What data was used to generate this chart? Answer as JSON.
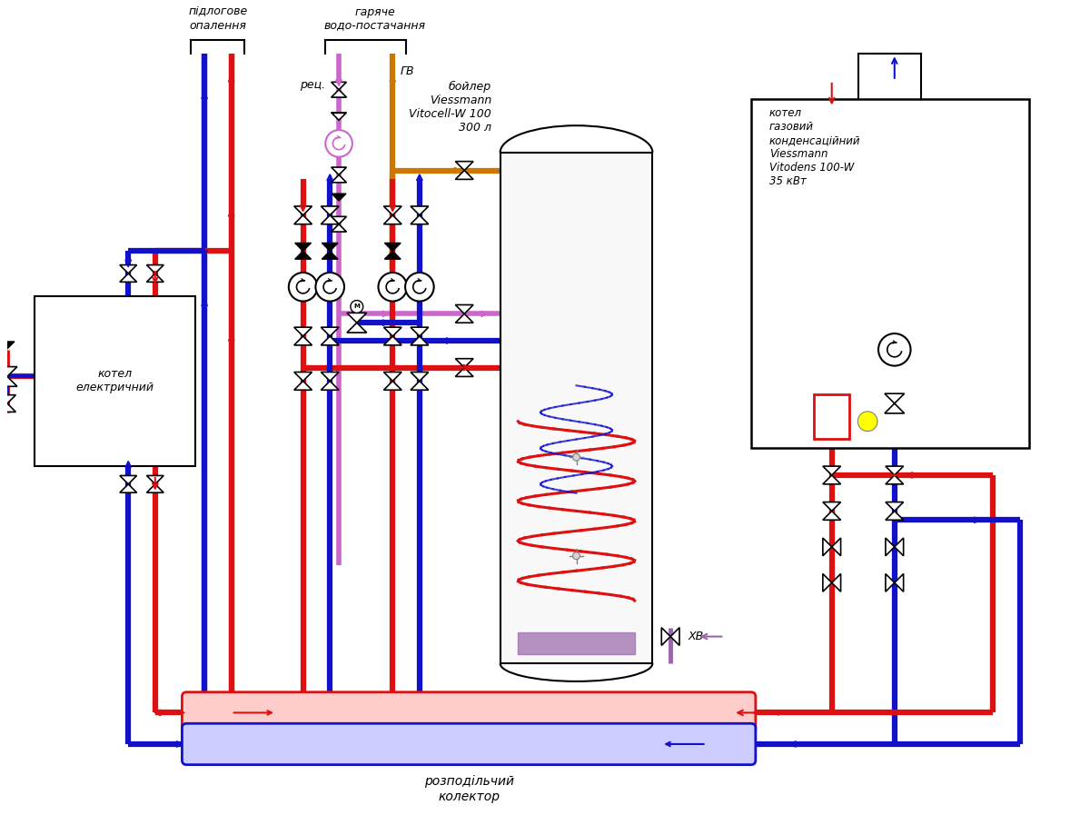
{
  "bg": "#ffffff",
  "red": "#dd1111",
  "blue": "#1111cc",
  "orange": "#cc7700",
  "pink": "#cc66cc",
  "purple": "#9966aa",
  "label_floor": "підлогове\nопалення",
  "label_hot": "гаряче\nводо-постачання",
  "label_boiler": "бойлер\nViessmann\nVitocell-W 100\n300 л",
  "label_gas": "котел\nгазовий\nконденсаційний\nViessmann\nVitodens 100-W\n35 кВт",
  "label_electric": "котел\nелектричний",
  "label_collector": "розподільчий\nколектор",
  "label_rec": "рец.",
  "label_gv": "ГВ",
  "label_xv": "ХВ"
}
